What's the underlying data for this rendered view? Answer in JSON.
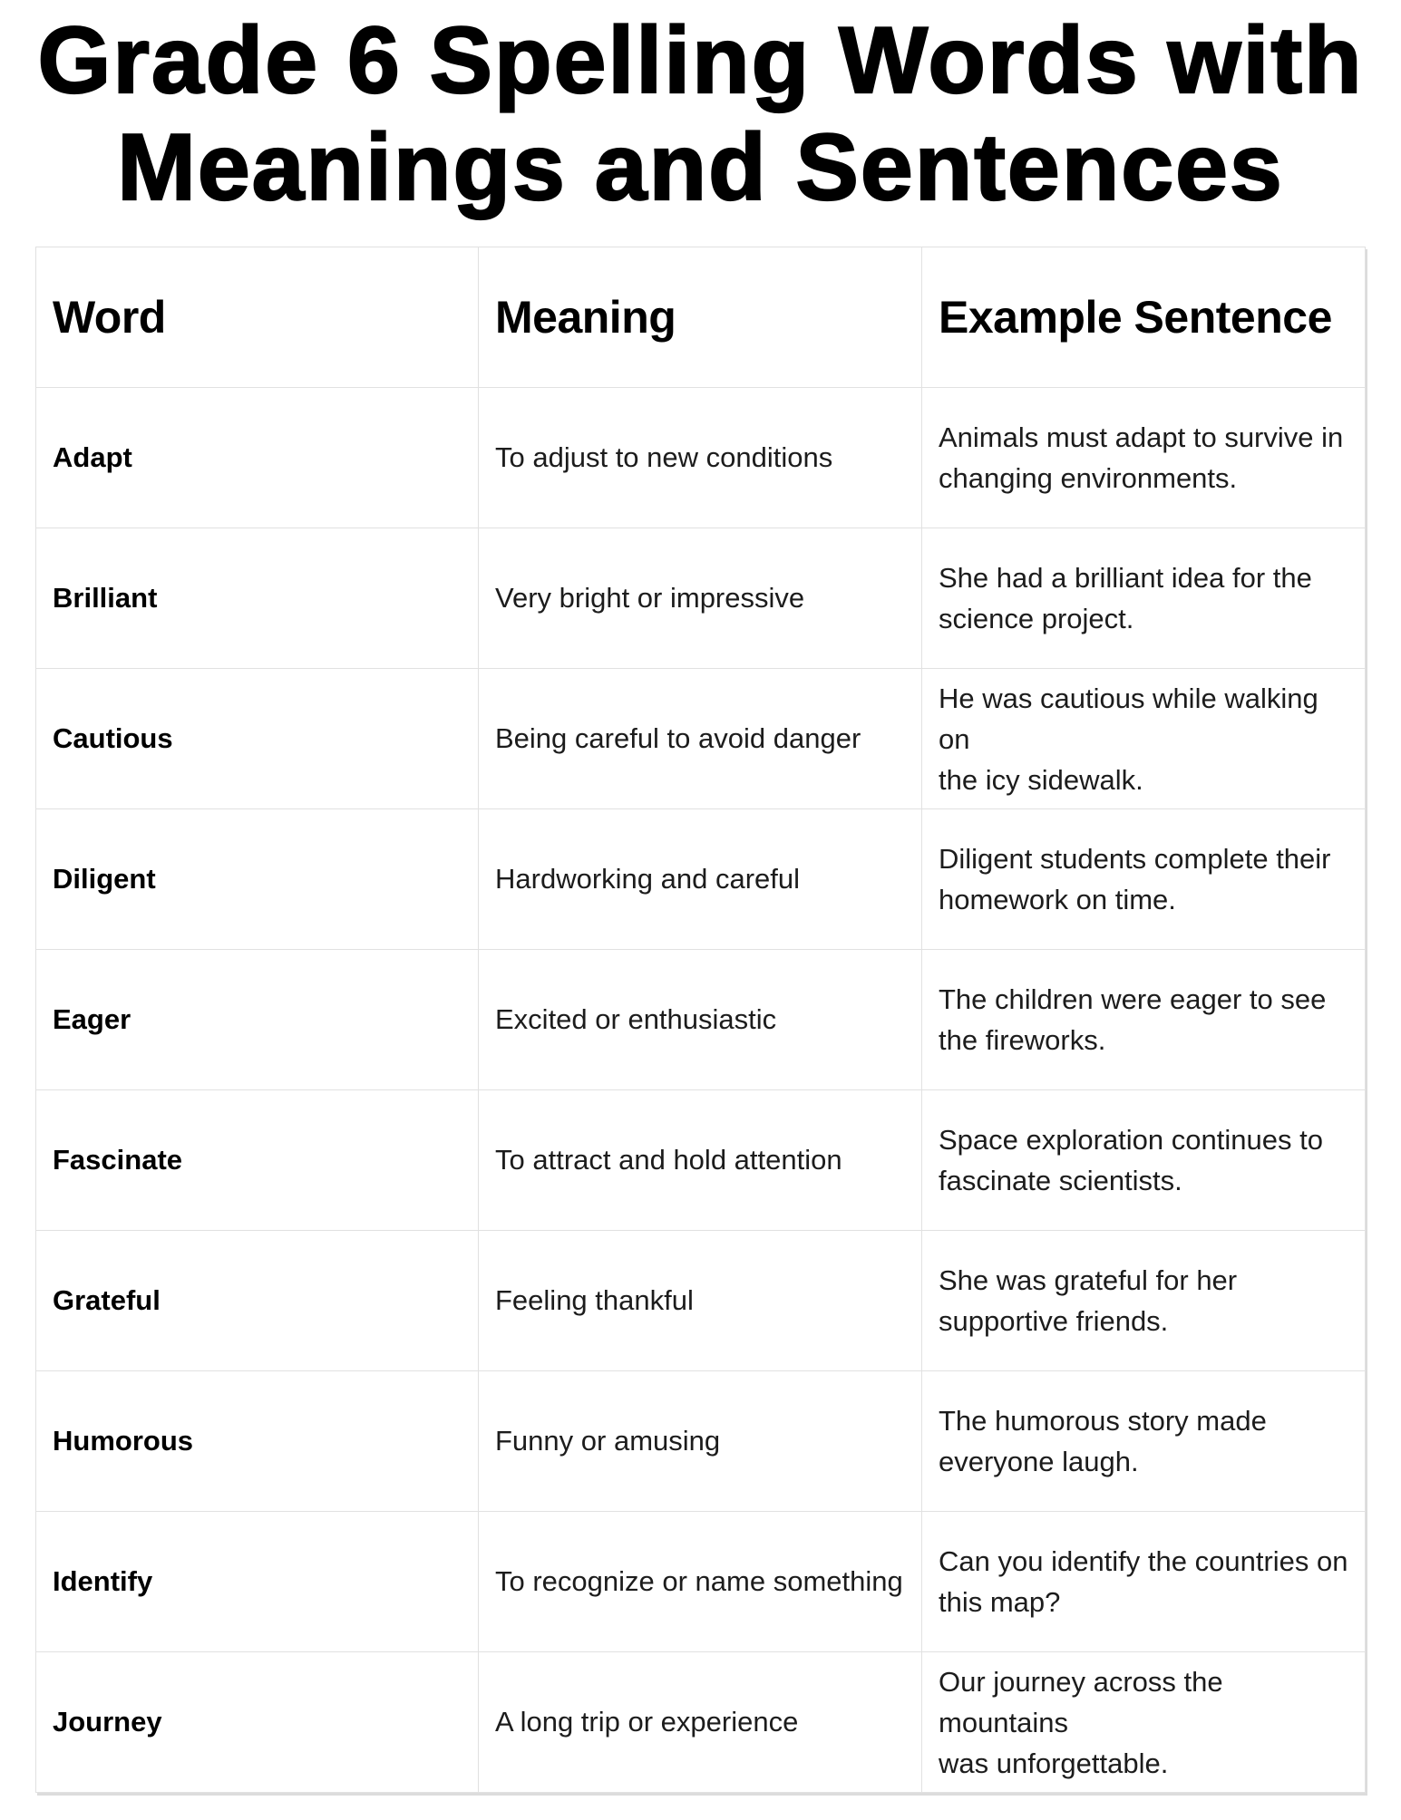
{
  "title": {
    "line1": "Grade 6 Spelling Words with",
    "line2": "Meanings and Sentences"
  },
  "table": {
    "headers": {
      "word": "Word",
      "meaning": "Meaning",
      "sentence": "Example Sentence"
    },
    "rows": [
      {
        "word": "Adapt",
        "meaning": "To adjust to new conditions",
        "sentence": "Animals must adapt to survive in\nchanging environments."
      },
      {
        "word": "Brilliant",
        "meaning": "Very bright or impressive",
        "sentence": "She had a brilliant idea for the\nscience project."
      },
      {
        "word": "Cautious",
        "meaning": "Being careful to avoid danger",
        "sentence": "He was cautious while walking on\nthe icy sidewalk."
      },
      {
        "word": "Diligent",
        "meaning": "Hardworking and careful",
        "sentence": "Diligent students complete their\nhomework on time."
      },
      {
        "word": "Eager",
        "meaning": "Excited or enthusiastic",
        "sentence": "The children were eager to see\nthe fireworks."
      },
      {
        "word": "Fascinate",
        "meaning": "To attract and hold attention",
        "sentence": "Space exploration continues to\nfascinate scientists."
      },
      {
        "word": "Grateful",
        "meaning": "Feeling thankful",
        "sentence": "She was grateful for her\nsupportive friends."
      },
      {
        "word": "Humorous",
        "meaning": "Funny or amusing",
        "sentence": "The humorous story made\neveryone laugh."
      },
      {
        "word": "Identify",
        "meaning": "To recognize or name something",
        "sentence": "Can you identify the countries on\nthis map?"
      },
      {
        "word": "Journey",
        "meaning": "A long trip or experience",
        "sentence": "Our journey across the mountains\nwas unforgettable."
      }
    ]
  },
  "colors": {
    "background": "#ffffff",
    "title_text": "#000000",
    "body_text": "#1c1c1c",
    "border": "#e1e1e1"
  }
}
